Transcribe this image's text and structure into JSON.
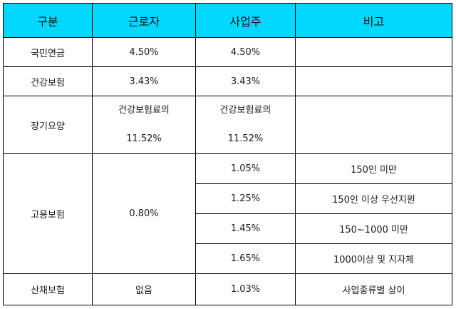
{
  "header": {
    "category": "구분",
    "worker": "근로자",
    "employer": "사업주",
    "note": "비고"
  },
  "rows": {
    "national_pension": {
      "name": "국민연금",
      "worker": "4.50%",
      "employer": "4.50%",
      "note": ""
    },
    "health_insurance": {
      "name": "건강보험",
      "worker": "3.43%",
      "employer": "3.43%",
      "note": ""
    },
    "long_term_care": {
      "name": "장기요양",
      "worker_line1": "건강보험료의",
      "worker_line2": "11.52%",
      "employer_line1": "건강보험료의",
      "employer_line2": "11.52%",
      "note": ""
    },
    "employment_insurance": {
      "name": "고용보험",
      "worker": "0.80%",
      "tiers": [
        {
          "employer": "1.05%",
          "note": "150인 미만"
        },
        {
          "employer": "1.25%",
          "note": "150인 이상 우선지원"
        },
        {
          "employer": "1.45%",
          "note": "150~1000 미만"
        },
        {
          "employer": "1.65%",
          "note": "1000이상 및 지자체"
        }
      ]
    },
    "industrial_accident": {
      "name": "산재보험",
      "worker": "없음",
      "employer": "1.03%",
      "note": "사업종류별 상이"
    }
  }
}
